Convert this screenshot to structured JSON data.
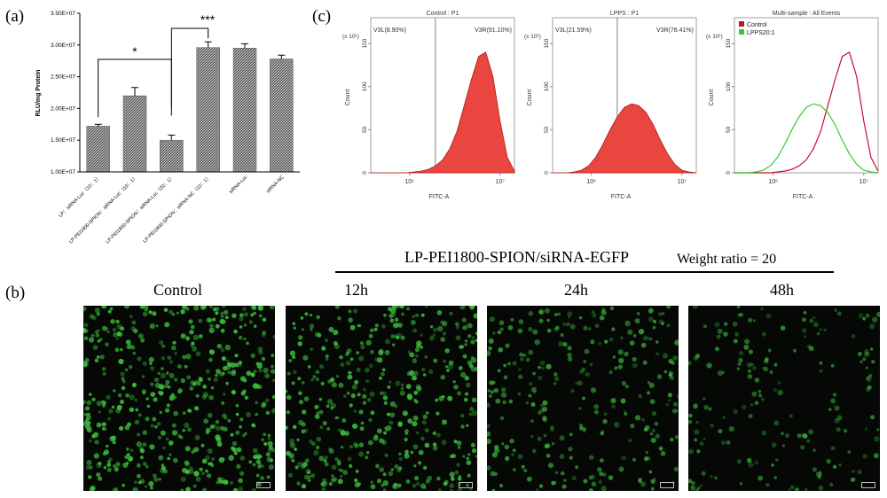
{
  "panels": {
    "a": "(a)",
    "b": "(b)",
    "c": "(c)"
  },
  "chart_data": [
    {
      "type": "bar",
      "ylabel": "RLU/mg  Protein",
      "ylim": [
        10000000,
        35000000
      ],
      "yticks": [
        "1.00E+07",
        "1.50E+07",
        "2.00E+07",
        "2.50E+07",
        "3.00E+07",
        "3.50E+07"
      ],
      "categories": [
        "LP：siRNA-Luc（10：1）",
        "LP-PEI1800-SPION：siRNA-Luc（10：1）",
        "LP-PEI1800-SPION：siRNA-Luc（20：1）",
        "LP-PEI1800-SPION：siRNA-NC（10：1）",
        "siRNA-Luc",
        "siRNA-NC"
      ],
      "values": [
        17200000,
        22000000,
        15000000,
        29600000,
        29500000,
        27800000
      ],
      "errors": [
        300000,
        1300000,
        800000,
        900000,
        700000,
        600000
      ],
      "significance": [
        {
          "label": "*",
          "from": 0,
          "to": 2
        },
        {
          "label": "***",
          "from": 2,
          "to": 3
        }
      ],
      "bar_color": "#7f7f7f"
    },
    {
      "type": "area",
      "title": "Control : P1",
      "xlabel": "FITC-A",
      "ylabel": "Count",
      "xscale": "log",
      "xticks": [
        "10⁶",
        "10⁷"
      ],
      "yticks": [
        "0",
        "50",
        "100",
        "150"
      ],
      "ymult": "(x 10¹)",
      "ylim": [
        0,
        180
      ],
      "gates": [
        {
          "name": "V3L",
          "percent": "V3L(8.90%)"
        },
        {
          "name": "V3R",
          "percent": "V3R(91.10%)"
        }
      ],
      "series": [
        {
          "x": [
            0.0,
            0.05,
            0.1,
            0.15,
            0.2,
            0.25,
            0.3,
            0.35,
            0.4,
            0.45,
            0.5,
            0.55,
            0.6,
            0.65,
            0.7,
            0.75,
            0.8,
            0.85,
            0.9,
            0.95,
            1.0
          ],
          "y": [
            0,
            0,
            0,
            0,
            0,
            0,
            1,
            2,
            4,
            8,
            15,
            28,
            48,
            78,
            108,
            135,
            140,
            112,
            60,
            18,
            2
          ],
          "color": "#e8463f"
        }
      ]
    },
    {
      "type": "area",
      "title": "LPPS : P1",
      "xlabel": "FITC-A",
      "ylabel": "Count",
      "xscale": "log",
      "xticks": [
        "10⁶",
        "10⁷"
      ],
      "yticks": [
        "0",
        "50",
        "100",
        "150"
      ],
      "ymult": "(x 10¹)",
      "ylim": [
        0,
        180
      ],
      "gates": [
        {
          "name": "V3L",
          "percent": "V3L(21.59%)"
        },
        {
          "name": "V3R",
          "percent": "V3R(78.41%)"
        }
      ],
      "series": [
        {
          "x": [
            0.0,
            0.05,
            0.1,
            0.15,
            0.2,
            0.25,
            0.3,
            0.35,
            0.4,
            0.45,
            0.5,
            0.55,
            0.6,
            0.65,
            0.7,
            0.75,
            0.8,
            0.85,
            0.9,
            0.95,
            1.0
          ],
          "y": [
            0,
            0,
            0,
            1,
            3,
            8,
            18,
            33,
            50,
            65,
            76,
            80,
            78,
            70,
            56,
            38,
            22,
            10,
            3,
            1,
            0
          ],
          "color": "#e8463f"
        }
      ]
    },
    {
      "type": "line",
      "title": "Multi-sample : All Events",
      "xlabel": "FITC-A",
      "ylabel": "Count",
      "xscale": "log",
      "xticks": [
        "10⁶",
        "10⁷"
      ],
      "yticks": [
        "0",
        "50",
        "100",
        "150"
      ],
      "ymult": "(x 10¹)",
      "ylim": [
        0,
        180
      ],
      "legend": "top-left",
      "series": [
        {
          "name": "Control",
          "color": "#c8102e",
          "x": [
            0.0,
            0.05,
            0.1,
            0.15,
            0.2,
            0.25,
            0.3,
            0.35,
            0.4,
            0.45,
            0.5,
            0.55,
            0.6,
            0.65,
            0.7,
            0.75,
            0.8,
            0.85,
            0.9,
            0.95,
            1.0
          ],
          "y": [
            0,
            0,
            0,
            0,
            0,
            0,
            1,
            2,
            4,
            8,
            15,
            28,
            48,
            78,
            108,
            135,
            140,
            112,
            60,
            18,
            2
          ]
        },
        {
          "name": "LPPS20:1",
          "color": "#33cc33",
          "x": [
            0.0,
            0.05,
            0.1,
            0.15,
            0.2,
            0.25,
            0.3,
            0.35,
            0.4,
            0.45,
            0.5,
            0.55,
            0.6,
            0.65,
            0.7,
            0.75,
            0.8,
            0.85,
            0.9,
            0.95,
            1.0
          ],
          "y": [
            0,
            0,
            0,
            1,
            3,
            8,
            18,
            33,
            50,
            65,
            76,
            80,
            78,
            70,
            56,
            38,
            22,
            10,
            3,
            1,
            0
          ]
        }
      ]
    }
  ],
  "panel_b": {
    "title": "LP-PEI1800-SPION/siRNA-EGFP",
    "ratio": "Weight ratio = 20",
    "images": [
      {
        "label": "Control",
        "density": 1.0
      },
      {
        "label": "12h",
        "density": 0.85
      },
      {
        "label": "24h",
        "density": 0.55
      },
      {
        "label": "48h",
        "density": 0.35
      }
    ],
    "cell_color": "#3fbf3f"
  }
}
